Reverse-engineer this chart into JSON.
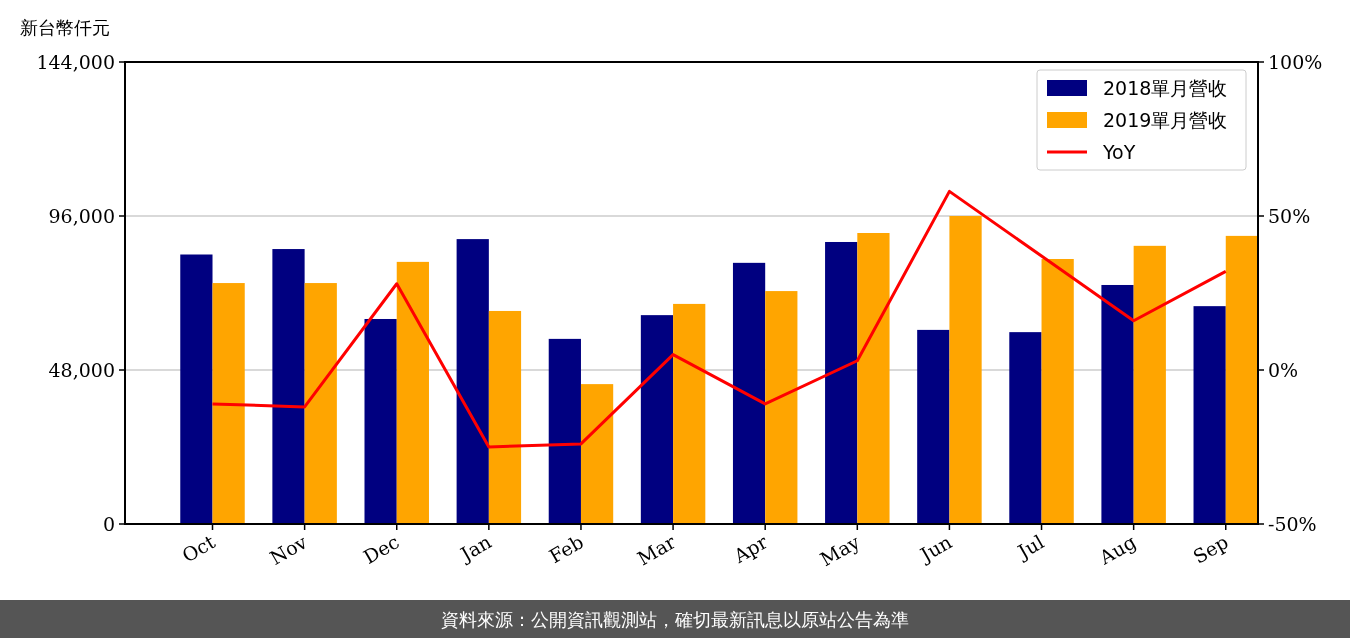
{
  "chart_data": {
    "type": "bar",
    "ylabel": "新台幣仟元",
    "categories": [
      "Oct",
      "Nov",
      "Dec",
      "Jan",
      "Feb",
      "Mar",
      "Apr",
      "May",
      "Jun",
      "Jul",
      "Aug",
      "Sep"
    ],
    "series": [
      {
        "name": "2018單月營收",
        "color": "#000080",
        "values": [
          84000,
          85700,
          63900,
          88800,
          57700,
          65100,
          81400,
          87900,
          60500,
          59800,
          74500,
          67900
        ]
      },
      {
        "name": "2019單月營收",
        "color": "#ffa500",
        "values": [
          75100,
          75100,
          81700,
          66400,
          43600,
          68600,
          72600,
          90700,
          96000,
          82600,
          86700,
          89800
        ]
      },
      {
        "name": "YoY",
        "type": "line",
        "axis": "y2",
        "color": "#ff0000",
        "values": [
          -11,
          -12,
          28,
          -25,
          -24,
          5,
          -11,
          3,
          58,
          37,
          16,
          32
        ]
      }
    ],
    "ylim": [
      0,
      144000
    ],
    "yticks": [
      {
        "value": 0,
        "label": "0"
      },
      {
        "value": 48000,
        "label": "48,000"
      },
      {
        "value": 96000,
        "label": "96,000"
      },
      {
        "value": 144000,
        "label": "144,000"
      }
    ],
    "y2lim": [
      -50,
      100
    ],
    "y2ticks": [
      {
        "value": -50,
        "label": "-50%"
      },
      {
        "value": 0,
        "label": "0%"
      },
      {
        "value": 50,
        "label": "50%"
      },
      {
        "value": 100,
        "label": "100%"
      }
    ],
    "grid": "y",
    "legend": "top right",
    "marker": "none",
    "annotations": [
      "資料來源：公開資訊觀測站，確切最新訊息以原站公告為準"
    ]
  }
}
